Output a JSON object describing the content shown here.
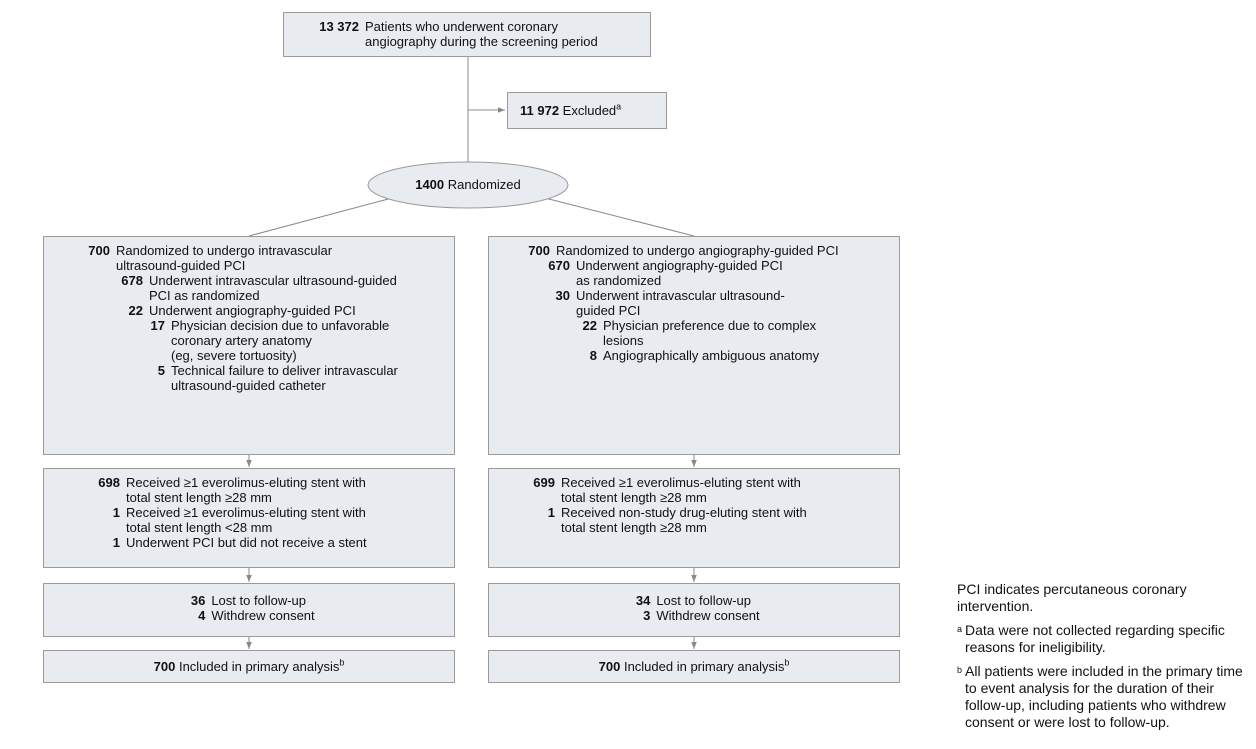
{
  "screening": {
    "count": "13 372",
    "lines": [
      "Patients who underwent coronary",
      "angiography during the screening period"
    ]
  },
  "excluded": {
    "count": "11 972",
    "label": "Excluded",
    "note": "a"
  },
  "randomized": {
    "count": 1400,
    "label": "Randomized"
  },
  "arms": [
    {
      "allocation": {
        "count": 700,
        "lines": [
          "Randomized to undergo intravascular",
          "ultrasound-guided PCI"
        ],
        "items": [
          {
            "count": 678,
            "lines": [
              "Underwent intravascular ultrasound-guided",
              "PCI as randomized"
            ]
          },
          {
            "count": 22,
            "lines": [
              "Underwent angiography-guided PCI"
            ],
            "items": [
              {
                "count": 17,
                "lines": [
                  "Physician decision due to unfavorable",
                  "coronary artery anatomy",
                  "(eg, severe tortuosity)"
                ]
              },
              {
                "count": 5,
                "lines": [
                  "Technical failure to deliver intravascular",
                  "ultrasound-guided catheter"
                ]
              }
            ]
          }
        ]
      },
      "stents": [
        {
          "count": 698,
          "lines": [
            "Received ≥1 everolimus-eluting stent with",
            "total stent length ≥28 mm"
          ]
        },
        {
          "count": 1,
          "lines": [
            "Received ≥1 everolimus-eluting stent with",
            "total stent length <28 mm"
          ]
        },
        {
          "count": 1,
          "lines": [
            "Underwent PCI but did not receive a stent"
          ]
        }
      ],
      "followup": [
        {
          "count": 36,
          "lines": [
            "Lost to follow-up"
          ]
        },
        {
          "count": 4,
          "lines": [
            "Withdrew consent"
          ]
        }
      ],
      "analysis": {
        "count": 700,
        "label": "Included in primary analysis",
        "note": "b"
      }
    },
    {
      "allocation": {
        "count": 700,
        "lines": [
          "Randomized to undergo angiography-guided PCI"
        ],
        "items": [
          {
            "count": 670,
            "lines": [
              "Underwent angiography-guided PCI",
              "as randomized"
            ]
          },
          {
            "count": 30,
            "lines": [
              "Underwent intravascular ultrasound-",
              "guided PCI"
            ],
            "items": [
              {
                "count": 22,
                "lines": [
                  "Physician preference due to complex",
                  "lesions"
                ]
              },
              {
                "count": 8,
                "lines": [
                  "Angiographically ambiguous anatomy"
                ]
              }
            ]
          }
        ]
      },
      "stents": [
        {
          "count": 699,
          "lines": [
            "Received ≥1 everolimus-eluting stent with",
            "total stent length ≥28 mm"
          ]
        },
        {
          "count": 1,
          "lines": [
            "Received non-study drug-eluting stent with",
            "total stent length ≥28 mm"
          ]
        }
      ],
      "followup": [
        {
          "count": 34,
          "lines": [
            "Lost to follow-up"
          ]
        },
        {
          "count": 3,
          "lines": [
            "Withdrew consent"
          ]
        }
      ],
      "analysis": {
        "count": 700,
        "label": "Included in primary analysis",
        "note": "b"
      }
    }
  ],
  "footnotes": {
    "abbreviation": "PCI indicates percutaneous coronary intervention.",
    "notes": [
      {
        "mark": "a",
        "text": "Data were not collected regarding specific reasons for ineligibility."
      },
      {
        "mark": "b",
        "text": "All patients were included in the primary time to event analysis for the duration of their follow-up, including patients who withdrew consent or were lost to follow-up."
      }
    ]
  }
}
